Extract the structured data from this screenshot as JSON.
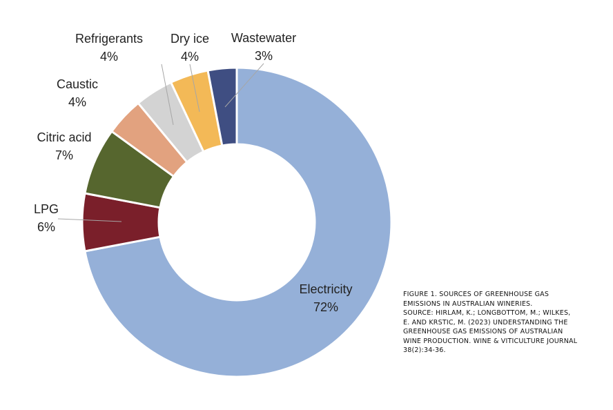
{
  "chart_data": {
    "type": "pie",
    "donut": true,
    "slices": [
      {
        "label": "Electricity",
        "value": 72,
        "value_label": "72%",
        "color": "#95B0D8"
      },
      {
        "label": "LPG",
        "value": 6,
        "value_label": "6%",
        "color": "#7A1F2A"
      },
      {
        "label": "Citric acid",
        "value": 7,
        "value_label": "7%",
        "color": "#56662E"
      },
      {
        "label": "Caustic",
        "value": 4,
        "value_label": "4%",
        "color": "#E2A27F"
      },
      {
        "label": "Refrigerants",
        "value": 4,
        "value_label": "4%",
        "color": "#D3D3D3"
      },
      {
        "label": "Dry ice",
        "value": 4,
        "value_label": "4%",
        "color": "#F3B957"
      },
      {
        "label": "Wastewater",
        "value": 3,
        "value_label": "3%",
        "color": "#3F4E82"
      }
    ],
    "legend": "none"
  },
  "caption": {
    "lines": [
      "Figure 1. Sources of greenhouse gas",
      "emissions in Australian wineries.",
      "Source: Hirlam, K.; Longbottom, M.; Wilkes,",
      "E. and Krstic, M. (2023) Understanding the",
      "greenhouse gas emissions of Australian",
      "wine production. Wine & Viticulture Journal",
      "38(2):34-36."
    ]
  }
}
